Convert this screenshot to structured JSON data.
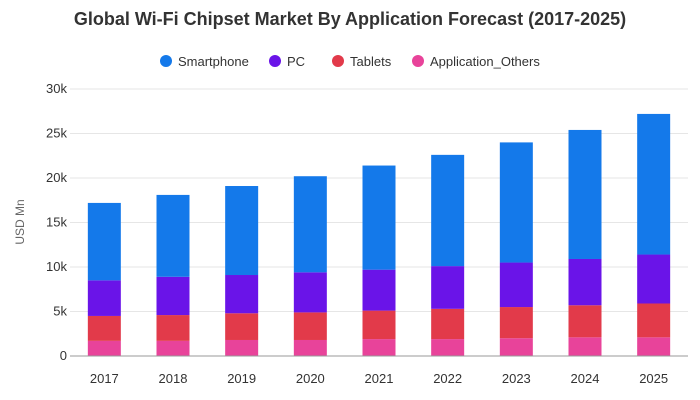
{
  "chart_data": {
    "type": "bar",
    "stacked": true,
    "title": "Global Wi-Fi Chipset Market By Application Forecast (2017-2025)",
    "xlabel": "",
    "ylabel": "USD Mn",
    "ylim": [
      0,
      30000
    ],
    "yticks": [
      0,
      5000,
      10000,
      15000,
      20000,
      25000,
      30000
    ],
    "ytick_labels": [
      "0",
      "5k",
      "10k",
      "15k",
      "20k",
      "25k",
      "30k"
    ],
    "grid": true,
    "legend_position": "top-center",
    "categories": [
      "2017",
      "2018",
      "2019",
      "2020",
      "2021",
      "2022",
      "2023",
      "2024",
      "2025"
    ],
    "series": [
      {
        "name": "Application_Others",
        "color": "#e8439a",
        "values": [
          1700,
          1700,
          1800,
          1800,
          1900,
          1900,
          2000,
          2100,
          2100
        ]
      },
      {
        "name": "Tablets",
        "color": "#e23a4a",
        "values": [
          2800,
          2900,
          3000,
          3100,
          3200,
          3400,
          3500,
          3600,
          3800
        ]
      },
      {
        "name": "PC",
        "color": "#6a14e8",
        "values": [
          4000,
          4300,
          4300,
          4500,
          4600,
          4800,
          5000,
          5200,
          5500
        ]
      },
      {
        "name": "Smartphone",
        "color": "#1479ea",
        "values": [
          8700,
          9200,
          10000,
          10800,
          11700,
          12500,
          13500,
          14500,
          15800
        ]
      }
    ],
    "legend_order": [
      "Smartphone",
      "PC",
      "Tablets",
      "Application_Others"
    ]
  }
}
